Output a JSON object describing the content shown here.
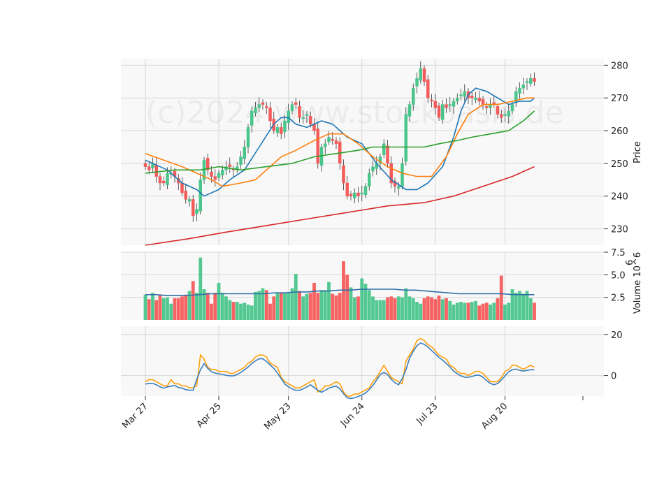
{
  "chart_data": {
    "type": "candlestick",
    "watermark": "(c)2024 www.stockoasis.de",
    "colors": {
      "up": "#4ac58b",
      "down": "#f45b5b",
      "ma_short": "#1f77b4",
      "ma_mid": "#ff7f0e",
      "ma_long": "#2ca02c",
      "ma_200": "#d62728",
      "vol_avg": "#2f6fa8",
      "osc_fast": "#ff9f0a",
      "osc_slow": "#3b7dbb",
      "grid": "#d6d6d6",
      "panel_bg": "#f8f8f8"
    },
    "x_tick_labels": [
      "Mar 27",
      "Apr 25",
      "May 23",
      "Jun 24",
      "Jul 23",
      "Aug 20"
    ],
    "x_tick_index": [
      0,
      20,
      39,
      59,
      79,
      98
    ],
    "price_panel": {
      "ylabel": "Price",
      "ylim": [
        225,
        282
      ],
      "ticks": [
        230,
        240,
        250,
        260,
        270,
        280
      ]
    },
    "volume_panel": {
      "ylabel": "Volume  10^6",
      "ylim": [
        0,
        7.5
      ],
      "ticks": [
        2.5,
        5.0,
        7.5
      ],
      "tick_labels": [
        "2.5",
        "5.0",
        "7.5"
      ]
    },
    "oscillator_panel": {
      "ylim": [
        -10,
        24
      ],
      "ticks": [
        0,
        20
      ]
    },
    "closes": [
      249,
      248,
      250,
      246,
      244,
      244,
      247,
      247,
      246,
      244,
      241,
      239,
      239,
      234,
      236,
      245,
      251,
      248,
      246,
      245,
      247,
      248,
      249,
      249,
      248,
      249,
      252,
      255,
      261,
      266,
      267,
      268,
      268,
      267,
      263,
      260,
      261,
      259,
      263,
      266,
      268,
      268,
      264,
      264,
      265,
      262,
      260,
      250,
      255,
      256,
      258,
      257,
      256,
      250,
      244,
      240,
      240,
      241,
      240,
      241,
      243,
      247,
      249,
      250,
      252,
      256,
      250,
      244,
      243,
      243,
      250,
      265,
      268,
      273,
      276,
      279,
      275,
      270,
      269,
      267,
      264,
      268,
      267,
      268,
      269,
      270,
      271,
      272,
      270,
      270,
      270,
      269,
      268,
      267,
      268,
      268,
      265,
      264,
      265,
      266,
      268,
      272,
      273,
      274,
      275,
      276,
      275
    ],
    "volume": [
      2.8,
      2.3,
      3.0,
      2.2,
      2.8,
      2.4,
      2.5,
      1.8,
      2.4,
      2.4,
      2.6,
      2.8,
      3.2,
      4.3,
      3.0,
      6.9,
      3.4,
      3.0,
      1.8,
      3.0,
      4.1,
      3.0,
      2.6,
      2.2,
      2.0,
      2.0,
      1.8,
      1.9,
      1.7,
      1.6,
      3.1,
      3.2,
      3.5,
      3.3,
      1.8,
      2.6,
      3.0,
      3.0,
      3.0,
      3.0,
      3.5,
      5.1,
      3.2,
      2.6,
      2.9,
      3.0,
      4.1,
      3.0,
      3.3,
      3.3,
      4.2,
      2.9,
      2.7,
      3.0,
      6.5,
      5.0,
      3.6,
      2.5,
      2.6,
      4.6,
      4.0,
      3.3,
      2.6,
      2.2,
      2.2,
      2.2,
      2.5,
      2.6,
      2.4,
      2.6,
      2.5,
      3.5,
      2.6,
      2.4,
      2.0,
      1.8,
      2.4,
      2.6,
      2.5,
      2.3,
      2.7,
      2.3,
      2.4,
      2.1,
      1.7,
      1.9,
      2.0,
      1.9,
      1.9,
      2.0,
      2.1,
      1.6,
      1.8,
      1.9,
      1.7,
      1.9,
      2.4,
      4.9,
      1.7,
      1.9,
      3.4,
      3.0,
      3.2,
      2.9,
      3.2,
      2.4,
      1.9
    ],
    "overlay_series": [
      {
        "name": "MA short",
        "color_key": "ma_short",
        "points": [
          [
            0,
            251
          ],
          [
            6,
            248
          ],
          [
            10,
            244
          ],
          [
            14,
            242
          ],
          [
            16,
            240
          ],
          [
            20,
            242
          ],
          [
            23,
            245
          ],
          [
            27,
            248
          ],
          [
            31,
            255
          ],
          [
            35,
            262
          ],
          [
            37,
            264
          ],
          [
            39,
            264
          ],
          [
            41,
            262
          ],
          [
            44,
            261
          ],
          [
            48,
            263
          ],
          [
            51,
            262
          ],
          [
            55,
            258
          ],
          [
            59,
            256
          ],
          [
            63,
            250
          ],
          [
            67,
            245
          ],
          [
            71,
            242
          ],
          [
            74,
            242
          ],
          [
            77,
            244
          ],
          [
            81,
            249
          ],
          [
            84,
            258
          ],
          [
            86,
            266
          ],
          [
            88,
            271
          ],
          [
            90,
            273
          ],
          [
            93,
            272
          ],
          [
            96,
            270
          ],
          [
            99,
            268
          ],
          [
            102,
            269
          ],
          [
            105,
            269
          ],
          [
            106,
            270
          ]
        ]
      },
      {
        "name": "MA mid",
        "color_key": "ma_mid",
        "points": [
          [
            0,
            253
          ],
          [
            5,
            251
          ],
          [
            10,
            249
          ],
          [
            14,
            247
          ],
          [
            18,
            245
          ],
          [
            21,
            243
          ],
          [
            26,
            244
          ],
          [
            30,
            245
          ],
          [
            34,
            249
          ],
          [
            37,
            252
          ],
          [
            41,
            254
          ],
          [
            46,
            257
          ],
          [
            50,
            259
          ],
          [
            54,
            259
          ],
          [
            58,
            256
          ],
          [
            62,
            252
          ],
          [
            66,
            249
          ],
          [
            70,
            247
          ],
          [
            74,
            246
          ],
          [
            78,
            246
          ],
          [
            82,
            252
          ],
          [
            85,
            259
          ],
          [
            88,
            265
          ],
          [
            92,
            268
          ],
          [
            96,
            268
          ],
          [
            100,
            269
          ],
          [
            104,
            270
          ],
          [
            106,
            270
          ]
        ]
      },
      {
        "name": "MA long",
        "color_key": "ma_long",
        "points": [
          [
            0,
            247
          ],
          [
            8,
            248
          ],
          [
            15,
            248
          ],
          [
            20,
            249
          ],
          [
            26,
            248
          ],
          [
            33,
            249
          ],
          [
            40,
            250
          ],
          [
            46,
            252
          ],
          [
            52,
            253
          ],
          [
            58,
            254
          ],
          [
            62,
            255
          ],
          [
            68,
            255
          ],
          [
            72,
            255
          ],
          [
            76,
            255
          ],
          [
            80,
            256
          ],
          [
            85,
            257
          ],
          [
            89,
            258
          ],
          [
            94,
            259
          ],
          [
            99,
            260
          ],
          [
            103,
            263
          ],
          [
            106,
            266
          ]
        ]
      },
      {
        "name": "MA 200",
        "color_key": "ma_200",
        "points": [
          [
            0,
            225
          ],
          [
            12,
            227
          ],
          [
            22,
            229
          ],
          [
            33,
            231
          ],
          [
            44,
            233
          ],
          [
            55,
            235
          ],
          [
            66,
            237
          ],
          [
            76,
            238
          ],
          [
            84,
            240
          ],
          [
            92,
            243
          ],
          [
            100,
            246
          ],
          [
            106,
            249
          ]
        ]
      }
    ],
    "volume_average": [
      2.8,
      2.8,
      2.7,
      2.7,
      2.7,
      2.8,
      2.9,
      2.9,
      2.9,
      2.9,
      2.9,
      2.9,
      3.0,
      3.0,
      3.1,
      3.1,
      3.2,
      3.2,
      3.3,
      3.3,
      3.4,
      3.4,
      3.4,
      3.4,
      3.3,
      3.3,
      3.2,
      3.1,
      3.0,
      2.9,
      2.9,
      2.9,
      2.9,
      2.9,
      2.8,
      2.8,
      2.8
    ],
    "oscillator_fast": [
      -3,
      -2,
      -2,
      -3,
      -4,
      -5,
      -5,
      -2,
      -4,
      -4,
      -5,
      -5,
      -6,
      -6,
      -5,
      10,
      8,
      4,
      3,
      3,
      2,
      2,
      2,
      1,
      1,
      2,
      3,
      4,
      6,
      7,
      9,
      10,
      10,
      9,
      6,
      5,
      4,
      -1,
      -3,
      -4,
      -5,
      -6,
      -6,
      -5,
      -4,
      -3,
      -2,
      -8,
      -7,
      -5,
      -5,
      -4,
      -3,
      -4,
      -8,
      -10,
      -10,
      -9,
      -9,
      -8,
      -7,
      -6,
      -3,
      -1,
      2,
      5,
      2,
      -1,
      -2,
      -3,
      -4,
      7,
      10,
      13,
      17,
      18,
      17,
      15,
      14,
      12,
      10,
      9,
      8,
      5,
      4,
      2,
      1,
      1,
      0,
      1,
      2,
      2,
      1,
      -1,
      -3,
      -3,
      -3,
      -1,
      2,
      3,
      5,
      5,
      4,
      3,
      4,
      5,
      4
    ]
  }
}
